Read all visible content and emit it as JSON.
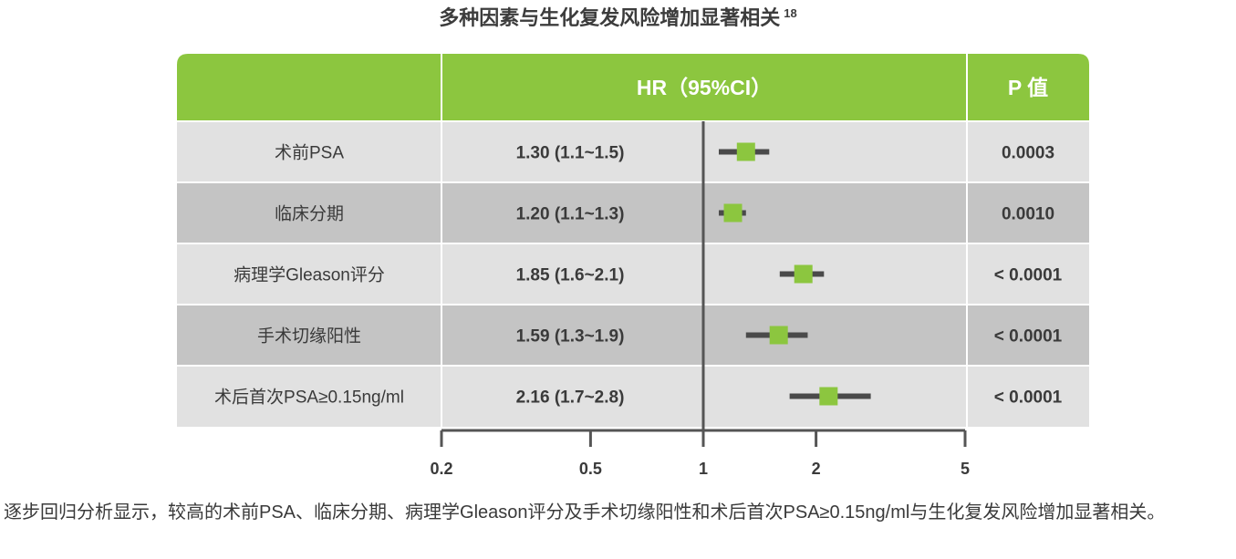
{
  "title": "多种因素与生化复发风险增加显著相关",
  "title_ref": "18",
  "colors": {
    "header_green": "#8cc63f",
    "row_light": "#e1e1e1",
    "row_dark": "#c4c4c4",
    "marker": "#8cc63f",
    "whisker": "#4a4a4a"
  },
  "chart_data": {
    "type": "forest",
    "columns": {
      "hr": "HR（95%CI）",
      "p": "P 值"
    },
    "x_scale": "log",
    "xlim": [
      0.2,
      5
    ],
    "ticks": [
      0.2,
      0.5,
      1,
      2,
      5
    ],
    "tick_labels": [
      "0.2",
      "0.5",
      "1",
      "2",
      "5"
    ],
    "reference_line": 1,
    "rows": [
      {
        "label": "术前PSA",
        "hr_text": "1.30 (1.1~1.5)",
        "hr": 1.3,
        "ci_low": 1.1,
        "ci_high": 1.5,
        "p": "0.0003"
      },
      {
        "label": "临床分期",
        "hr_text": "1.20 (1.1~1.3)",
        "hr": 1.2,
        "ci_low": 1.1,
        "ci_high": 1.3,
        "p": "0.0010"
      },
      {
        "label": "病理学Gleason评分",
        "hr_text": "1.85 (1.6~2.1)",
        "hr": 1.85,
        "ci_low": 1.6,
        "ci_high": 2.1,
        "p": "< 0.0001"
      },
      {
        "label": "手术切缘阳性",
        "hr_text": "1.59 (1.3~1.9)",
        "hr": 1.59,
        "ci_low": 1.3,
        "ci_high": 1.9,
        "p": "< 0.0001"
      },
      {
        "label": "术后首次PSA≥0.15ng/ml",
        "hr_text": "2.16 (1.7~2.8)",
        "hr": 2.16,
        "ci_low": 1.7,
        "ci_high": 2.8,
        "p": "< 0.0001"
      }
    ]
  },
  "footnote": "逐步回归分析显示，较高的术前PSA、临床分期、病理学Gleason评分及手术切缘阳性和术后首次PSA≥0.15ng/ml与生化复发风险增加显著相关。"
}
